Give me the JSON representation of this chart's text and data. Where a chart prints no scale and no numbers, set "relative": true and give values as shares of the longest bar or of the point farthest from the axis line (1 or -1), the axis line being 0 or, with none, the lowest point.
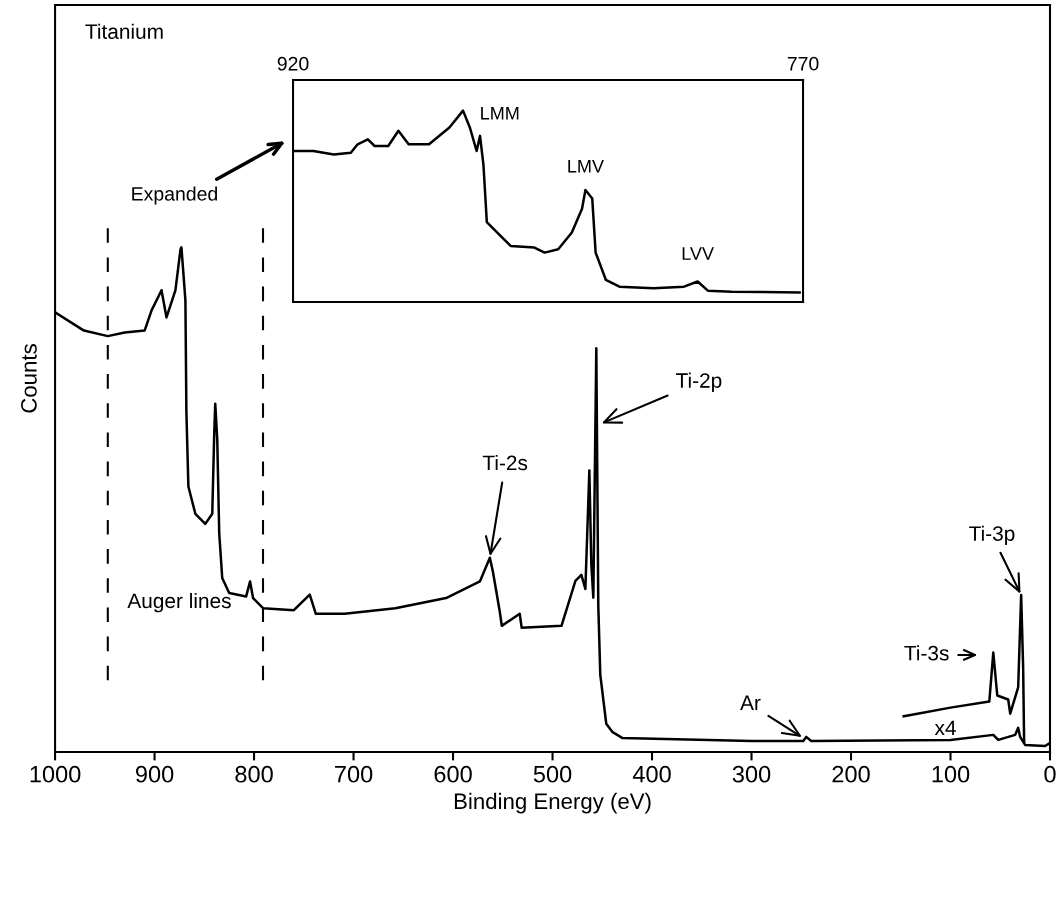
{
  "chart_data": [
    {
      "type": "line",
      "relative": true,
      "xlabel": "Binding Energy (eV)",
      "ylabel": "Counts",
      "xlim": [
        1000,
        0
      ],
      "xticks": [
        1000,
        900,
        800,
        700,
        600,
        500,
        400,
        300,
        200,
        100,
        0
      ],
      "tick_labels": "x",
      "series": [
        {
          "color": "#000000",
          "x": [
            1000,
            971,
            947,
            930,
            910,
            903,
            893,
            888,
            879,
            874,
            873,
            871,
            869,
            868,
            866,
            859,
            849,
            842,
            840,
            839,
            837,
            835,
            832,
            825,
            808,
            804,
            801,
            791,
            760,
            744,
            738,
            709,
            658,
            607,
            573,
            563,
            560,
            553,
            551,
            533,
            531,
            491,
            477,
            471,
            467,
            463,
            461,
            459,
            456,
            454,
            452,
            446,
            440,
            430,
            300,
            248,
            245,
            240,
            100,
            57,
            52,
            35,
            32,
            30,
            25,
            5,
            0
          ],
          "values": [
            0.871,
            0.835,
            0.824,
            0.831,
            0.835,
            0.875,
            0.915,
            0.861,
            0.915,
            0.995,
            1.0,
            0.948,
            0.895,
            0.673,
            0.526,
            0.472,
            0.452,
            0.472,
            0.633,
            0.69,
            0.62,
            0.433,
            0.345,
            0.315,
            0.308,
            0.338,
            0.305,
            0.285,
            0.281,
            0.312,
            0.274,
            0.274,
            0.285,
            0.305,
            0.338,
            0.385,
            0.358,
            0.278,
            0.25,
            0.274,
            0.246,
            0.25,
            0.339,
            0.351,
            0.323,
            0.558,
            0.371,
            0.306,
            0.8,
            0.29,
            0.153,
            0.056,
            0.04,
            0.028,
            0.022,
            0.022,
            0.03,
            0.022,
            0.024,
            0.034,
            0.024,
            0.034,
            0.048,
            0.03,
            0.014,
            0.012,
            0.018
          ]
        },
        {
          "color": "#000000",
          "x": [
            147,
            100,
            61,
            57,
            53,
            42,
            40,
            32,
            29,
            27,
            26
          ],
          "values": [
            0.071,
            0.088,
            0.1,
            0.197,
            0.112,
            0.104,
            0.076,
            0.128,
            0.311,
            0.169,
            0.02
          ]
        }
      ],
      "ref_lines": [
        {
          "axis": "x",
          "value": 947,
          "color": "#000000",
          "line_style": "dashed"
        },
        {
          "axis": "x",
          "value": 791,
          "color": "#000000",
          "line_style": "dashed"
        }
      ],
      "annotations": [
        "Titanium",
        "Expanded",
        "Auger lines",
        {
          "text": "Ti-2s",
          "x": 563,
          "y": 0.385
        },
        {
          "text": "Ti-2p",
          "x": 452,
          "y": 0.65
        },
        {
          "text": "Ar",
          "x": 248,
          "y": 0.028
        },
        "Ti-3s",
        {
          "text": "Ti-3p",
          "x": 29,
          "y": 0.311
        },
        "x4"
      ]
    },
    {
      "type": "line",
      "relative": true,
      "xlim": [
        920,
        770
      ],
      "xticks": [
        920,
        770
      ],
      "tick_labels": "x",
      "series": [
        {
          "color": "#000000",
          "x": [
            920,
            914,
            908,
            903,
            901,
            898,
            896,
            892,
            889,
            886,
            880,
            874,
            870,
            868,
            866,
            865,
            864,
            863,
            858,
            856,
            849,
            846,
            842,
            838,
            835,
            834,
            832,
            831,
            828,
            824,
            814,
            805,
            801,
            798,
            791,
            771
          ],
          "values": [
            0.789,
            0.789,
            0.771,
            0.78,
            0.824,
            0.85,
            0.815,
            0.815,
            0.895,
            0.824,
            0.824,
            0.912,
            1.0,
            0.912,
            0.789,
            0.868,
            0.717,
            0.417,
            0.328,
            0.293,
            0.284,
            0.258,
            0.275,
            0.363,
            0.487,
            0.585,
            0.541,
            0.258,
            0.116,
            0.08,
            0.072,
            0.08,
            0.107,
            0.059,
            0.054,
            0.049
          ]
        }
      ],
      "annotations": [
        {
          "text": "LMM",
          "x": 870,
          "y": 1.0
        },
        {
          "text": "LMV",
          "x": 834,
          "y": 0.585
        },
        {
          "text": "LVV",
          "x": 801,
          "y": 0.107
        }
      ]
    }
  ]
}
